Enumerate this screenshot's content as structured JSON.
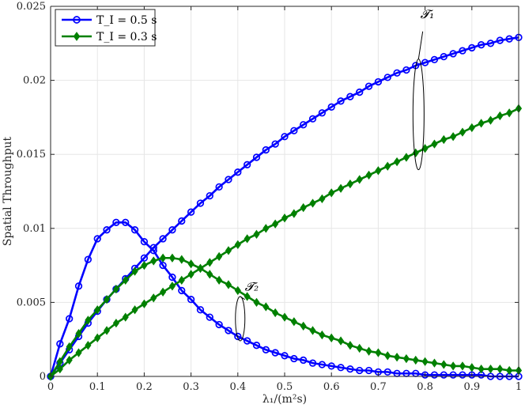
{
  "chart_data": {
    "type": "line",
    "xlabel": "λ₁/(m²s)",
    "ylabel": "Spatial Throughput",
    "xlim": [
      0,
      1
    ],
    "ylim": [
      0,
      0.025
    ],
    "xticks": [
      "0",
      "0.1",
      "0.2",
      "0.3",
      "0.4",
      "0.5",
      "0.6",
      "0.7",
      "0.8",
      "0.9",
      "1"
    ],
    "yticks": [
      "0",
      "0.005",
      "0.01",
      "0.015",
      "0.02",
      "0.025"
    ],
    "grid": true,
    "legend_position": "top-left",
    "legend": [
      "T_I = 0.5 s",
      "T_I = 0.3 s"
    ],
    "annotations": [
      {
        "label": "𝓣₁",
        "x": 0.79,
        "y": 0.0242
      },
      {
        "label": "𝓣₂",
        "x": 0.415,
        "y": 0.0058
      }
    ],
    "x": [
      0,
      0.02,
      0.04,
      0.06,
      0.08,
      0.1,
      0.12,
      0.14,
      0.16,
      0.18,
      0.2,
      0.22,
      0.24,
      0.26,
      0.28,
      0.3,
      0.32,
      0.34,
      0.36,
      0.38,
      0.4,
      0.42,
      0.44,
      0.46,
      0.48,
      0.5,
      0.52,
      0.54,
      0.56,
      0.58,
      0.6,
      0.62,
      0.64,
      0.66,
      0.68,
      0.7,
      0.72,
      0.74,
      0.76,
      0.78,
      0.8,
      0.82,
      0.84,
      0.86,
      0.88,
      0.9,
      0.92,
      0.94,
      0.96,
      0.98,
      1.0
    ],
    "series": [
      {
        "name": "T_I = 0.5 s (curve 1)",
        "color": "#0000ff",
        "marker": "circle",
        "values": [
          0,
          0.0009,
          0.0018,
          0.0027,
          0.0036,
          0.0044,
          0.0052,
          0.0059,
          0.0066,
          0.0073,
          0.008,
          0.0087,
          0.0093,
          0.0099,
          0.0105,
          0.0111,
          0.0117,
          0.0122,
          0.0128,
          0.0133,
          0.0138,
          0.0143,
          0.0148,
          0.0153,
          0.0157,
          0.0162,
          0.0166,
          0.017,
          0.0174,
          0.0178,
          0.0182,
          0.0186,
          0.0189,
          0.0192,
          0.0196,
          0.0199,
          0.0202,
          0.0205,
          0.0207,
          0.021,
          0.0212,
          0.0214,
          0.0216,
          0.0218,
          0.022,
          0.0222,
          0.0224,
          0.0225,
          0.0227,
          0.0228,
          0.0229
        ]
      },
      {
        "name": "T_I = 0.5 s (curve 2)",
        "color": "#0000ff",
        "marker": "circle",
        "values": [
          0,
          0.0022,
          0.0039,
          0.0061,
          0.0079,
          0.0093,
          0.0099,
          0.0104,
          0.0104,
          0.0099,
          0.0091,
          0.0085,
          0.0075,
          0.0067,
          0.0058,
          0.0052,
          0.0045,
          0.004,
          0.0035,
          0.0031,
          0.0027,
          0.0024,
          0.0021,
          0.0018,
          0.0016,
          0.0014,
          0.0012,
          0.0011,
          0.0009,
          0.0008,
          0.0007,
          0.0006,
          0.0005,
          0.0004,
          0.0004,
          0.0003,
          0.0003,
          0.0002,
          0.0002,
          0.0002,
          0.0001,
          0.0001,
          0.0001,
          0.0001,
          0.0001,
          0.0001,
          0.0001,
          0.0,
          0.0,
          0.0,
          0.0
        ]
      },
      {
        "name": "T_I = 0.3 s (curve 1)",
        "color": "#008000",
        "marker": "diamond",
        "values": [
          0,
          0.0005,
          0.0011,
          0.0016,
          0.0021,
          0.0026,
          0.0031,
          0.0036,
          0.004,
          0.0045,
          0.0049,
          0.0053,
          0.0057,
          0.0061,
          0.0065,
          0.0069,
          0.0073,
          0.0077,
          0.0081,
          0.0085,
          0.0089,
          0.0093,
          0.0096,
          0.01,
          0.0103,
          0.0107,
          0.011,
          0.0114,
          0.0117,
          0.012,
          0.0124,
          0.0127,
          0.013,
          0.0133,
          0.0136,
          0.0139,
          0.0142,
          0.0145,
          0.0148,
          0.0151,
          0.0154,
          0.0157,
          0.016,
          0.0162,
          0.0165,
          0.0168,
          0.0171,
          0.0173,
          0.0176,
          0.0178,
          0.0181
        ]
      },
      {
        "name": "T_I = 0.3 s (curve 2)",
        "color": "#008000",
        "marker": "diamond",
        "values": [
          0,
          0.001,
          0.002,
          0.0029,
          0.0038,
          0.0045,
          0.0052,
          0.0059,
          0.0065,
          0.0071,
          0.0075,
          0.0078,
          0.008,
          0.008,
          0.0079,
          0.0076,
          0.0073,
          0.0069,
          0.0065,
          0.0062,
          0.0058,
          0.0054,
          0.005,
          0.0047,
          0.0043,
          0.004,
          0.0037,
          0.0034,
          0.0031,
          0.0028,
          0.0026,
          0.0024,
          0.0021,
          0.0019,
          0.0017,
          0.0016,
          0.0014,
          0.0013,
          0.0012,
          0.0011,
          0.001,
          0.0009,
          0.0008,
          0.0007,
          0.0007,
          0.0006,
          0.0005,
          0.0005,
          0.0005,
          0.0004,
          0.0004
        ]
      }
    ]
  }
}
